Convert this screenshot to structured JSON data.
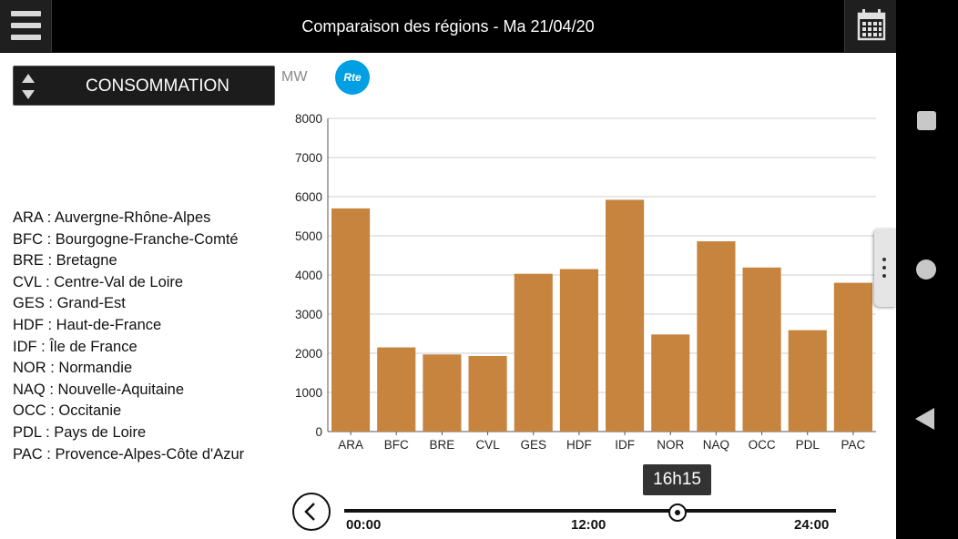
{
  "header": {
    "title": "Comparaison des régions - Ma 21/04/20"
  },
  "selector": {
    "label": "CONSOMMATION"
  },
  "unit": "MW",
  "logo_text": "Rte",
  "legend": [
    "ARA : Auvergne-Rhône-Alpes",
    "BFC : Bourgogne-Franche-Comté",
    "BRE : Bretagne",
    "CVL : Centre-Val de Loire",
    "GES : Grand-Est",
    "HDF : Haut-de-France",
    "IDF : Île de France",
    "NOR : Normandie",
    "NAQ : Nouvelle-Aquitaine",
    "OCC : Occitanie",
    "PDL : Pays de Loire",
    "PAC : Provence-Alpes-Côte d'Azur"
  ],
  "chart_data": {
    "type": "bar",
    "categories": [
      "ARA",
      "BFC",
      "BRE",
      "CVL",
      "GES",
      "HDF",
      "IDF",
      "NOR",
      "NAQ",
      "OCC",
      "PDL",
      "PAC"
    ],
    "values": [
      5700,
      2150,
      1970,
      1930,
      4030,
      4150,
      5920,
      2480,
      4860,
      4190,
      2590,
      3800
    ],
    "title": "",
    "xlabel": "",
    "ylabel": "MW",
    "ylim": [
      0,
      8000
    ],
    "yticks": [
      0,
      1000,
      2000,
      3000,
      4000,
      5000,
      6000,
      7000,
      8000
    ],
    "grid": true,
    "bar_color": "#c6843f"
  },
  "timeline": {
    "current": "16h15",
    "current_fraction": 0.677,
    "labels": [
      "00:00",
      "12:00",
      "24:00"
    ]
  },
  "colors": {
    "accent": "#c6843f",
    "rte_blue": "#009fe3",
    "topbar": "#000000"
  },
  "icons": {
    "menu": "hamburger-icon",
    "calendar": "calendar-icon",
    "back": "chevron-left-icon",
    "more": "vertical-dots-icon"
  }
}
